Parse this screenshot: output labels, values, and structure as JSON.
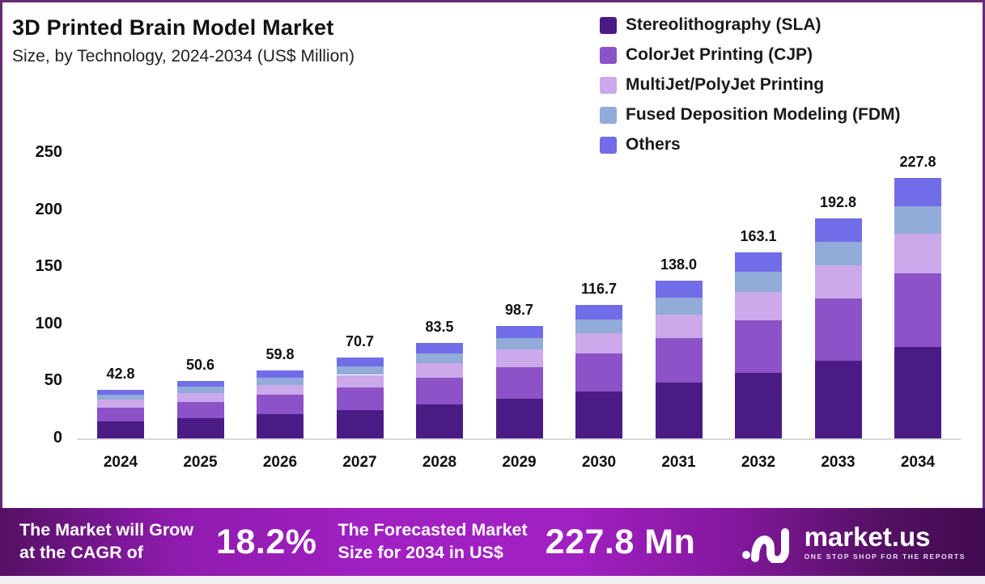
{
  "header": {
    "title": "3D Printed Brain Model Market",
    "subtitle": "Size, by Technology, 2024-2034 (US$ Million)"
  },
  "chart_data": {
    "type": "bar",
    "stacked": true,
    "title": "3D Printed Brain Model Market",
    "subtitle": "Size, by Technology, 2024-2034 (US$ Million)",
    "xlabel": "",
    "ylabel": "US$ Million",
    "ylim": [
      0,
      250
    ],
    "y_ticks": [
      0,
      50,
      100,
      150,
      200,
      250
    ],
    "grid": false,
    "legend_position": "top-right",
    "categories": [
      "2024",
      "2025",
      "2026",
      "2027",
      "2028",
      "2029",
      "2030",
      "2031",
      "2032",
      "2033",
      "2034"
    ],
    "series": [
      {
        "name": "Stereolithography (SLA)",
        "color": "#4b1b85",
        "values": [
          15.1,
          17.8,
          21.0,
          24.9,
          29.4,
          34.7,
          41.1,
          48.6,
          57.4,
          67.9,
          80.2
        ]
      },
      {
        "name": "ColorJet Printing (CJP)",
        "color": "#8c52c7",
        "values": [
          12.1,
          14.3,
          16.9,
          20.0,
          23.6,
          27.9,
          33.0,
          39.1,
          46.2,
          54.6,
          64.5
        ]
      },
      {
        "name": "MultiJet/PolyJet Printing",
        "color": "#cba9ea",
        "values": [
          6.5,
          7.7,
          9.1,
          10.7,
          12.7,
          15.0,
          17.7,
          21.0,
          24.8,
          29.3,
          34.6
        ]
      },
      {
        "name": "Fused Deposition Modeling (FDM)",
        "color": "#92abd8",
        "values": [
          4.5,
          5.4,
          6.3,
          7.5,
          8.9,
          10.5,
          12.4,
          14.6,
          17.3,
          20.4,
          24.2
        ]
      },
      {
        "name": "Others",
        "color": "#716de9",
        "values": [
          4.6,
          5.4,
          6.5,
          7.6,
          8.9,
          10.6,
          12.5,
          14.7,
          17.4,
          20.6,
          24.3
        ]
      }
    ],
    "totals": [
      42.8,
      50.6,
      59.8,
      70.7,
      83.5,
      98.7,
      116.7,
      138.0,
      163.1,
      192.8,
      227.8
    ]
  },
  "banner": {
    "cagr_label_line1": "The Market will Grow",
    "cagr_label_line2": "at the CAGR of",
    "cagr_value": "18.2%",
    "forecast_label_line1": "The Forecasted Market",
    "forecast_label_line2": "Size for 2034 in US$",
    "forecast_value": "227.8 Mn",
    "brand": "market.us",
    "brand_tagline": "ONE STOP SHOP FOR THE REPORTS"
  },
  "colors": {
    "frame_border": "#672a74",
    "banner_center": "#a120c2",
    "banner_edge": "#410a50",
    "axis_line": "#d9d9d9"
  }
}
